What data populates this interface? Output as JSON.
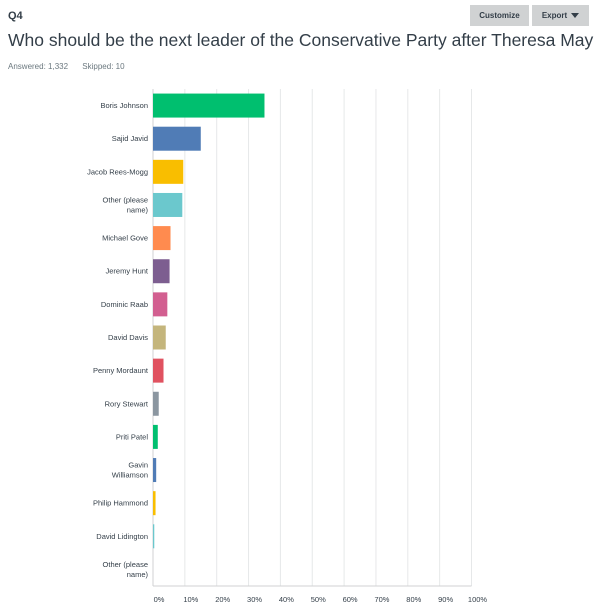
{
  "question": {
    "number": "Q4",
    "title": "Who should be the next leader of the Conservative Party after Theresa May?",
    "answered": "Answered: 1,332",
    "skipped": "Skipped: 10"
  },
  "toolbar": {
    "customize_label": "Customize",
    "export_label": "Export",
    "export_icon": "caret-down-icon",
    "button_color": "#d0d2d3"
  },
  "chart_data": {
    "type": "bar",
    "orientation": "horizontal",
    "categories": [
      [
        "Boris Johnson"
      ],
      [
        "Sajid Javid"
      ],
      [
        "Jacob Rees-Mogg"
      ],
      [
        "Other (please",
        "name)"
      ],
      [
        "Michael Gove"
      ],
      [
        "Jeremy Hunt"
      ],
      [
        "Dominic Raab"
      ],
      [
        "David Davis"
      ],
      [
        "Penny Mordaunt"
      ],
      [
        "Rory Stewart"
      ],
      [
        "Priti Patel"
      ],
      [
        "Gavin",
        "Williamson"
      ],
      [
        "Philip Hammond"
      ],
      [
        "David Lidington"
      ],
      [
        "Other (please",
        "name)"
      ]
    ],
    "values": [
      35,
      15,
      9.5,
      9.2,
      5.5,
      5.2,
      4.5,
      4,
      3.3,
      1.8,
      1.5,
      1,
      0.8,
      0.4,
      0
    ],
    "colors": [
      "#00bf6f",
      "#507cb6",
      "#f9be00",
      "#6bc8cd",
      "#ff8b4f",
      "#7d5e90",
      "#d25f90",
      "#c4b57c",
      "#e05260",
      "#8b96a0",
      "#00bf6f",
      "#507cb6",
      "#f9be00",
      "#6bc8cd",
      "#ff8b4f"
    ],
    "xticks": [
      "0%",
      "10%",
      "20%",
      "30%",
      "40%",
      "50%",
      "60%",
      "70%",
      "80%",
      "90%",
      "100%"
    ],
    "xlim": [
      0,
      100
    ],
    "grid": true
  }
}
